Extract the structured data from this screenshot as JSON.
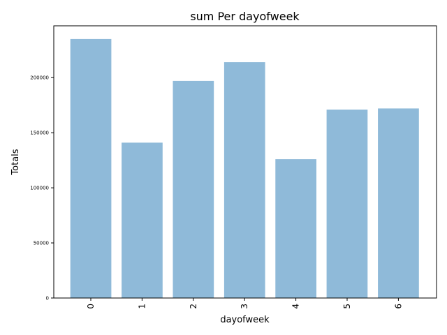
{
  "chart_data": {
    "type": "bar",
    "title": "sum Per dayofweek",
    "xlabel": "dayofweek",
    "ylabel": "Totals",
    "categories": [
      "0",
      "1",
      "2",
      "3",
      "4",
      "5",
      "6"
    ],
    "values": [
      235000,
      141000,
      197000,
      214000,
      126000,
      171000,
      172000
    ],
    "ylim": [
      0,
      247000
    ],
    "yticks": [
      0,
      50000,
      100000,
      150000,
      200000
    ],
    "ytick_labels": [
      "0",
      "50000",
      "100000",
      "150000",
      "200000"
    ],
    "bar_color": "#8fbad9",
    "grid": false,
    "legend": "none"
  }
}
